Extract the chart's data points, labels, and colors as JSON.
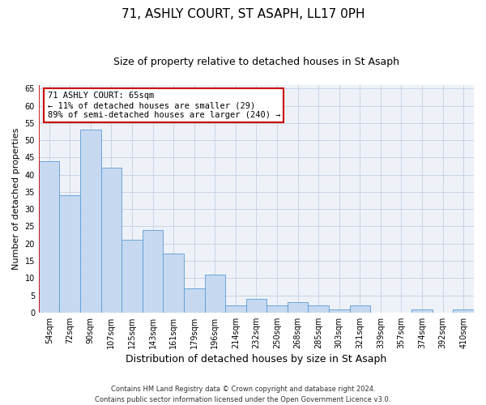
{
  "title": "71, ASHLY COURT, ST ASAPH, LL17 0PH",
  "subtitle": "Size of property relative to detached houses in St Asaph",
  "xlabel": "Distribution of detached houses by size in St Asaph",
  "ylabel": "Number of detached properties",
  "categories": [
    "54sqm",
    "72sqm",
    "90sqm",
    "107sqm",
    "125sqm",
    "143sqm",
    "161sqm",
    "179sqm",
    "196sqm",
    "214sqm",
    "232sqm",
    "250sqm",
    "268sqm",
    "285sqm",
    "303sqm",
    "321sqm",
    "339sqm",
    "357sqm",
    "374sqm",
    "392sqm",
    "410sqm"
  ],
  "values": [
    44,
    34,
    53,
    42,
    21,
    24,
    17,
    7,
    11,
    2,
    4,
    2,
    3,
    2,
    1,
    2,
    0,
    0,
    1,
    0,
    1
  ],
  "bar_color": "#c6d9f0",
  "bar_edge_color": "#5b9bd5",
  "highlight_line_color": "#cc0000",
  "annotation_text": "71 ASHLY COURT: 65sqm\n← 11% of detached houses are smaller (29)\n89% of semi-detached houses are larger (240) →",
  "annotation_box_color": "white",
  "annotation_box_edge_color": "#cc0000",
  "ylim": [
    0,
    66
  ],
  "yticks": [
    0,
    5,
    10,
    15,
    20,
    25,
    30,
    35,
    40,
    45,
    50,
    55,
    60,
    65
  ],
  "grid_color": "#c8d4e8",
  "background_color": "#eef2f8",
  "footer_text": "Contains HM Land Registry data © Crown copyright and database right 2024.\nContains public sector information licensed under the Open Government Licence v3.0.",
  "title_fontsize": 11,
  "subtitle_fontsize": 9,
  "xlabel_fontsize": 9,
  "ylabel_fontsize": 8,
  "tick_fontsize": 7,
  "footer_fontsize": 6
}
